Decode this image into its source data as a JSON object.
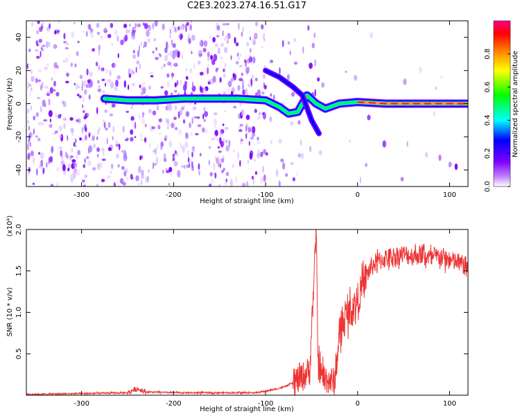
{
  "page": {
    "title": "C2E3.2023.274.16.51.G17"
  },
  "chart_data": [
    {
      "type": "heatmap",
      "title": "C2E3.2023.274.16.51.G17",
      "xlabel": "Height of straight line (km)",
      "ylabel": "Frequency (Hz)",
      "xlim": [
        -360,
        120
      ],
      "ylim": [
        -50,
        50
      ],
      "xticks": [
        -300,
        -200,
        -100,
        0,
        100
      ],
      "yticks": [
        -40,
        -20,
        0,
        20,
        40
      ],
      "colorbar": {
        "label": "Normalized spectral amplitude",
        "range": [
          0.0,
          1.0
        ],
        "ticks": [
          "0.0",
          "0.2",
          "0.4",
          "0.6",
          "0.8"
        ],
        "colormap": [
          "#ffffff",
          "#8000ff",
          "#0000ff",
          "#00ffff",
          "#00ff00",
          "#ffff00",
          "#ff8000",
          "#ff0000",
          "#ff0080"
        ]
      },
      "main_signal": [
        {
          "x": -275,
          "y": 3
        },
        {
          "x": -250,
          "y": 2
        },
        {
          "x": -220,
          "y": 2
        },
        {
          "x": -190,
          "y": 3
        },
        {
          "x": -160,
          "y": 3
        },
        {
          "x": -130,
          "y": 3
        },
        {
          "x": -100,
          "y": 2
        },
        {
          "x": -85,
          "y": -2
        },
        {
          "x": -75,
          "y": -6
        },
        {
          "x": -65,
          "y": -5
        },
        {
          "x": -55,
          "y": 5
        },
        {
          "x": -45,
          "y": 0
        },
        {
          "x": -35,
          "y": -3
        },
        {
          "x": -20,
          "y": 0
        },
        {
          "x": 0,
          "y": 1
        },
        {
          "x": 30,
          "y": 0
        },
        {
          "x": 60,
          "y": 0
        },
        {
          "x": 90,
          "y": 0
        },
        {
          "x": 120,
          "y": 0
        }
      ],
      "secondary_signal": [
        {
          "x": -100,
          "y": 20
        },
        {
          "x": -85,
          "y": 16
        },
        {
          "x": -70,
          "y": 10
        },
        {
          "x": -60,
          "y": 5
        },
        {
          "x": -50,
          "y": -10
        },
        {
          "x": -42,
          "y": -18
        }
      ]
    },
    {
      "type": "line",
      "xlabel": "Height of straight line (km)",
      "ylabel": "SNR (10 * v/v)",
      "yscale_label": "(x10⁴)",
      "xlim": [
        -360,
        120
      ],
      "ylim": [
        0,
        2.0
      ],
      "xticks": [
        -300,
        -200,
        -100,
        0,
        100
      ],
      "yticks": [
        "0.5",
        "1.0",
        "1.5",
        "2.0"
      ],
      "color": "#ee3333",
      "series": [
        {
          "x": [
            -360,
            -300,
            -250,
            -240,
            -230,
            -200,
            -150,
            -110,
            -100,
            -90,
            -80,
            -70,
            -60,
            -52,
            -47,
            -45,
            -43,
            -40,
            -35,
            -30,
            -25,
            -20,
            -15,
            -10,
            -5,
            0,
            5,
            10,
            15,
            20,
            30,
            40,
            50,
            60,
            70,
            80,
            90,
            100,
            110,
            120
          ],
          "y": [
            0.01,
            0.02,
            0.03,
            0.08,
            0.04,
            0.03,
            0.03,
            0.03,
            0.05,
            0.07,
            0.1,
            0.15,
            0.22,
            0.3,
            1.5,
            2.0,
            0.4,
            0.25,
            0.2,
            0.18,
            0.15,
            0.7,
            0.9,
            1.0,
            1.05,
            1.15,
            1.3,
            1.45,
            1.55,
            1.6,
            1.65,
            1.68,
            1.7,
            1.68,
            1.7,
            1.65,
            1.68,
            1.62,
            1.6,
            1.55
          ]
        }
      ]
    }
  ]
}
